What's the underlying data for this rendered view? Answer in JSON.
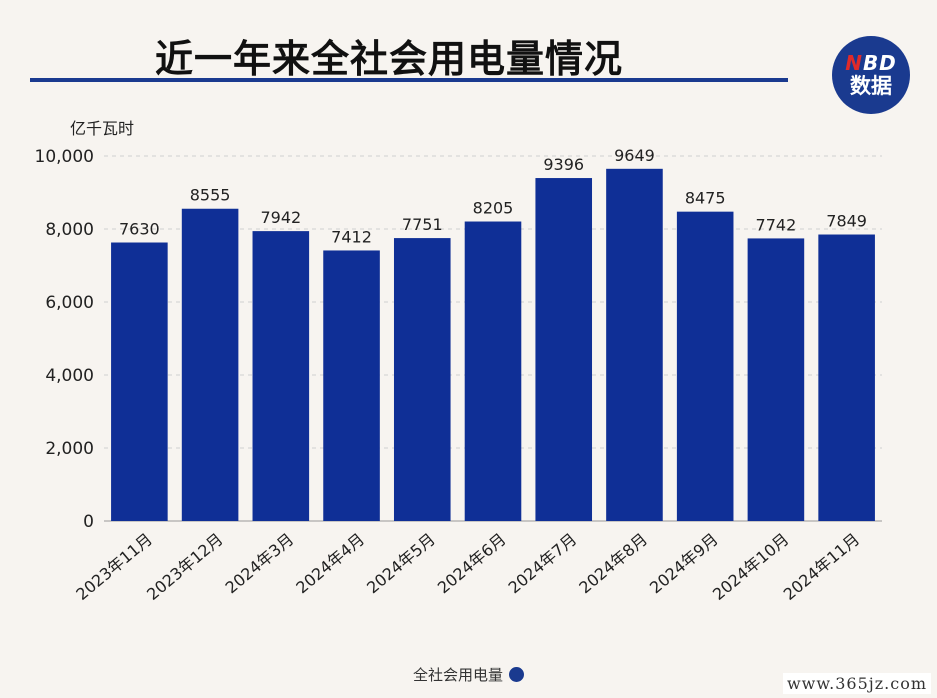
{
  "title": "近一年来全社会用电量情况",
  "logo": {
    "line1_red": "N",
    "line1_rest": "BD",
    "line2": "数据"
  },
  "watermark": "www.365jz.com",
  "chart_data": {
    "type": "bar",
    "title": "近一年来全社会用电量情况",
    "ylabel": "亿千瓦时",
    "xlabel": "",
    "ylim": [
      0,
      10000
    ],
    "yticks": [
      0,
      2000,
      4000,
      6000,
      8000,
      10000
    ],
    "ytick_labels": [
      "0",
      "2,000",
      "4,000",
      "6,000",
      "8,000",
      "10,000"
    ],
    "categories": [
      "2023年11月",
      "2023年12月",
      "2024年3月",
      "2024年4月",
      "2024年5月",
      "2024年6月",
      "2024年7月",
      "2024年8月",
      "2024年9月",
      "2024年10月",
      "2024年11月"
    ],
    "series": [
      {
        "name": "全社会用电量",
        "color": "#0f2f96",
        "values": [
          7630,
          8555,
          7942,
          7412,
          7751,
          8205,
          9396,
          9649,
          8475,
          7742,
          7849
        ]
      }
    ],
    "data_labels": [
      "7630",
      "8555",
      "7942",
      "7412",
      "7751",
      "8205",
      "9396",
      "9649",
      "8475",
      "7742",
      "7849"
    ],
    "grid": "dashed-horizontal",
    "legend": "bottom-center"
  }
}
